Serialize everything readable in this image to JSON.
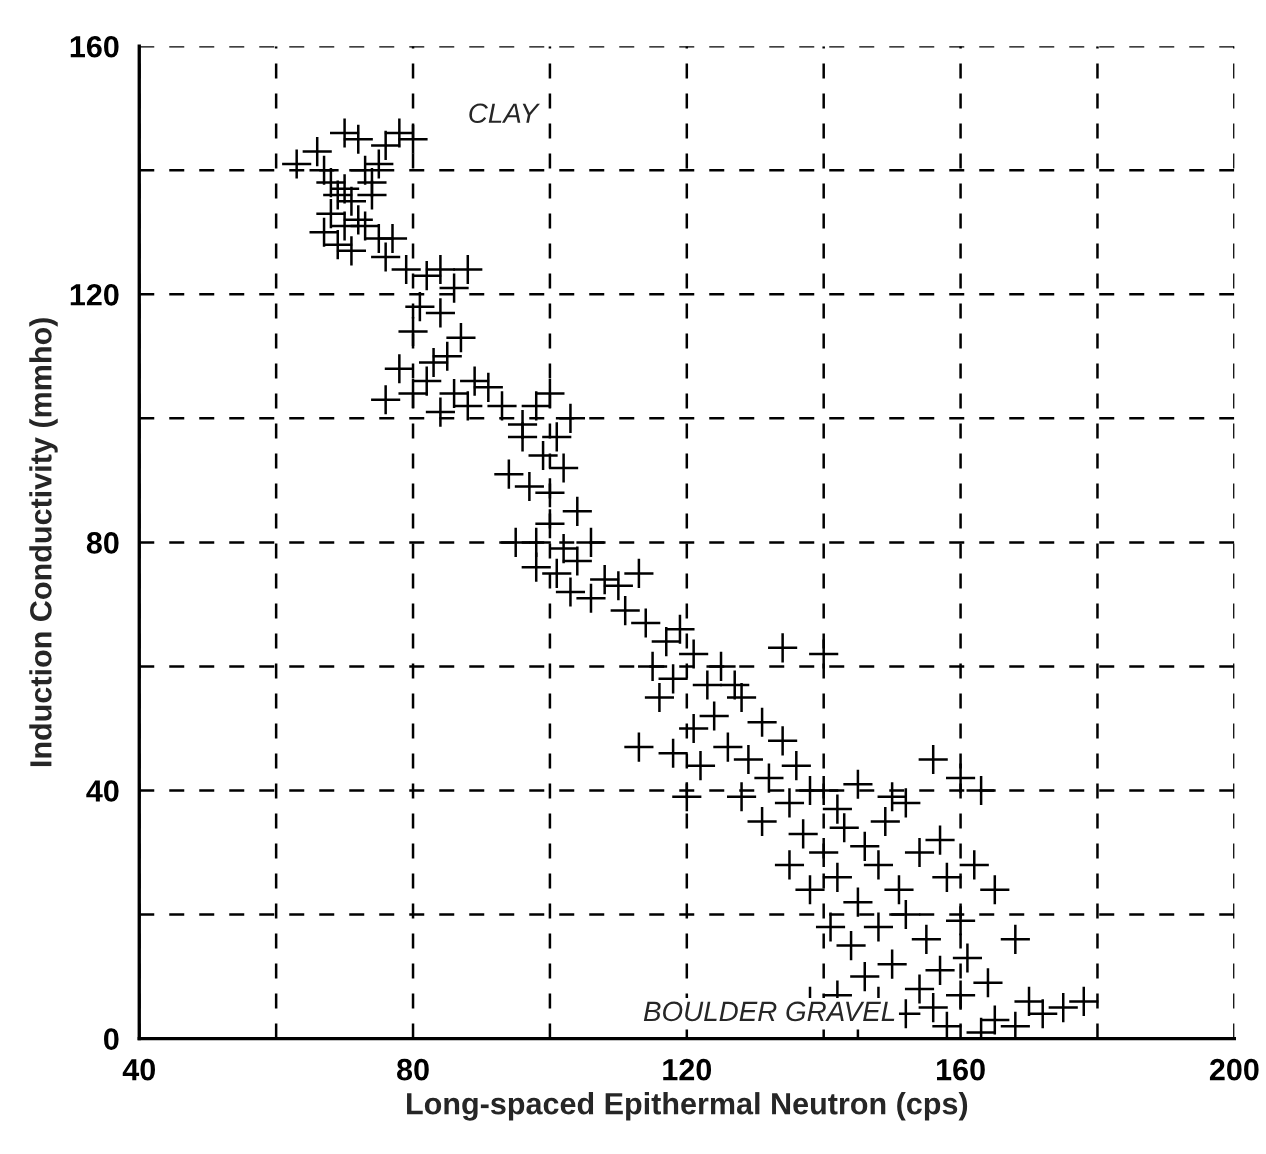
{
  "chart_data": {
    "type": "scatter",
    "xlabel": "Long-spaced Epithermal Neutron (cps)",
    "ylabel": "Induction Conductivity (mmho)",
    "x": [
      63,
      66,
      67,
      68,
      69,
      70,
      70,
      71,
      72,
      72,
      73,
      74,
      75,
      76,
      78,
      80,
      67,
      69,
      71,
      73,
      75,
      74,
      70,
      68,
      76,
      77,
      79,
      82,
      84,
      86,
      88,
      81,
      84,
      80,
      83,
      85,
      87,
      78,
      82,
      86,
      89,
      91,
      93,
      76,
      80,
      84,
      88,
      96,
      98,
      100,
      96,
      99,
      101,
      103,
      94,
      97,
      100,
      102,
      104,
      100,
      98,
      102,
      95,
      98,
      101,
      104,
      106,
      108,
      103,
      106,
      110,
      113,
      111,
      114,
      117,
      119,
      115,
      118,
      121,
      123,
      125,
      127,
      116,
      121,
      124,
      128,
      131,
      134,
      140,
      113,
      118,
      122,
      120,
      126,
      129,
      132,
      134,
      136,
      138,
      128,
      131,
      135,
      140,
      142,
      145,
      150,
      137,
      140,
      143,
      146,
      149,
      152,
      156,
      160,
      163,
      157,
      135,
      138,
      142,
      145,
      148,
      151,
      154,
      158,
      162,
      141,
      144,
      148,
      152,
      155,
      160,
      165,
      168,
      146,
      150,
      154,
      157,
      161,
      164,
      148,
      152,
      156,
      160,
      165,
      170,
      175,
      178,
      138,
      142,
      145,
      158,
      163,
      168,
      172
    ],
    "values": [
      141,
      143,
      140,
      138,
      136,
      146,
      137,
      135,
      145,
      132,
      140,
      138,
      141,
      144,
      146,
      145,
      130,
      128,
      127,
      131,
      129,
      136,
      131,
      133,
      126,
      129,
      124,
      123,
      124,
      121,
      124,
      118,
      117,
      114,
      109,
      110,
      113,
      108,
      106,
      104,
      106,
      105,
      102,
      103,
      104,
      101,
      102,
      99,
      102,
      104,
      97,
      94,
      97,
      100,
      91,
      89,
      88,
      92,
      85,
      83,
      80,
      79,
      80,
      76,
      75,
      77,
      80,
      74,
      72,
      71,
      73,
      75,
      69,
      67,
      64,
      66,
      60,
      58,
      62,
      57,
      60,
      57,
      55,
      50,
      52,
      55,
      51,
      63,
      62,
      47,
      46,
      44,
      39,
      47,
      45,
      42,
      48,
      44,
      40,
      39,
      35,
      38,
      40,
      37,
      41,
      39,
      33,
      30,
      34,
      31,
      35,
      38,
      45,
      42,
      40,
      32,
      28,
      24,
      26,
      22,
      28,
      24,
      30,
      26,
      28,
      18,
      15,
      18,
      20,
      16,
      19,
      24,
      16,
      10,
      12,
      8,
      11,
      13,
      9,
      6,
      4,
      5,
      7,
      3,
      6,
      5,
      6,
      6,
      7,
      2,
      2,
      1,
      2,
      4
    ],
    "color": "#000000",
    "marker": "cross",
    "xlim": [
      40,
      200
    ],
    "ylim": [
      0,
      160
    ],
    "xticks": [
      40,
      {
        "value": 60,
        "label": null
      },
      80,
      {
        "value": 100,
        "label": null
      },
      120,
      {
        "value": 140,
        "label": null
      },
      160,
      {
        "value": 180,
        "label": null
      },
      200
    ],
    "yticks": [
      0,
      {
        "value": 20,
        "label": null
      },
      40,
      {
        "value": 60,
        "label": null
      },
      80,
      {
        "value": 100,
        "label": null
      },
      120,
      {
        "value": 140,
        "label": null
      },
      160
    ],
    "grid": true,
    "legend": false,
    "annotations": [
      "CLAY",
      "BOULDER GRAVEL"
    ]
  }
}
